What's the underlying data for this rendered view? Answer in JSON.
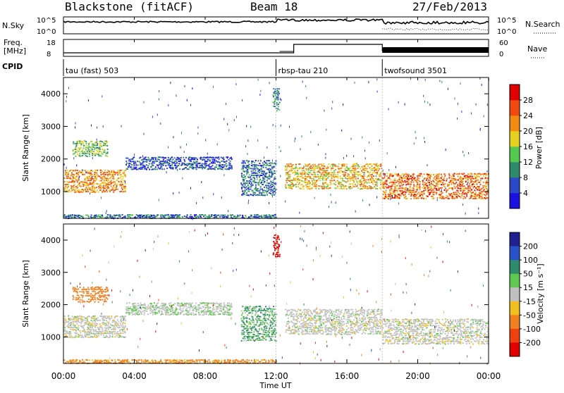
{
  "header": {
    "station": "Blackstone (fitACF)",
    "beam": "Beam 18",
    "date": "27/Feb/2013"
  },
  "aux_panels": {
    "nsky_label": "N.Sky",
    "nsearch_label": "N.Search",
    "nsky_ticks": [
      "10^5",
      "10^0"
    ],
    "nsearch_ticks": [
      "10^5",
      "10^0"
    ],
    "freq_label_line1": "Freq.",
    "freq_label_line2": "[MHz]",
    "freq_ticks": [
      "18",
      "8"
    ],
    "nave_label": "Nave",
    "nave_ticks": [
      "60",
      "0"
    ],
    "cpid_label": "CPID"
  },
  "cpid_segments": [
    {
      "name": "tau (fast) 503",
      "start_hour": 0
    },
    {
      "name": "rbsp-tau 210",
      "start_hour": 12
    },
    {
      "name": "twofsound 3501",
      "start_hour": 18
    }
  ],
  "time_axis": {
    "label": "Time UT",
    "ticks": [
      "00:00",
      "04:00",
      "08:00",
      "12:00",
      "16:00",
      "20:00",
      "00:00"
    ],
    "range_hours": [
      0,
      24
    ]
  },
  "power_panel": {
    "ylabel": "Slant Range [km]",
    "yticks": [
      "1000",
      "2000",
      "3000",
      "4000"
    ],
    "yrange_km": [
      180,
      4500
    ],
    "colorbar_label": "Power [dB]",
    "colorbar_ticks": [
      "4",
      "8",
      "12",
      "16",
      "20",
      "24",
      "28"
    ],
    "colorbar_range": [
      0,
      32
    ],
    "colorbar_colors": [
      "#1a10e0",
      "#2a48c8",
      "#2e8a6a",
      "#55c850",
      "#e8d020",
      "#f08a10",
      "#f04a10",
      "#e00000"
    ]
  },
  "velocity_panel": {
    "ylabel": "Slant Range [km]",
    "yticks": [
      "1000",
      "2000",
      "3000",
      "4000"
    ],
    "yrange_km": [
      180,
      4500
    ],
    "colorbar_label": "Velocity [m s⁻¹]",
    "colorbar_ticks": [
      "200",
      "100",
      "50",
      "15",
      "-15",
      "-50",
      "-100",
      "-200"
    ],
    "colorbar_colors": [
      "#202090",
      "#2850c8",
      "#2e8a6a",
      "#60c850",
      "#c0c0c0",
      "#f0c020",
      "#f08020",
      "#f04010",
      "#e00000"
    ]
  },
  "chart_data": [
    {
      "type": "heatmap",
      "title": "Blackstone (fitACF) Beam 18 27/Feb/2013 — Power",
      "xlabel": "Time UT",
      "ylabel": "Slant Range [km]",
      "xlim": [
        0,
        24
      ],
      "ylim": [
        180,
        4500
      ],
      "zlabel": "Power [dB]",
      "zlim": [
        0,
        32
      ],
      "regions": [
        {
          "t_start": 0.0,
          "t_end": 3.5,
          "r_low": 1000,
          "r_high": 1700,
          "power_db": 22
        },
        {
          "t_start": 0.5,
          "t_end": 2.5,
          "r_low": 2100,
          "r_high": 2600,
          "power_db": 14
        },
        {
          "t_start": 3.5,
          "t_end": 9.5,
          "r_low": 1700,
          "r_high": 2100,
          "power_db": 6
        },
        {
          "t_start": 10.0,
          "t_end": 12.0,
          "r_low": 900,
          "r_high": 2000,
          "power_db": 8
        },
        {
          "t_start": 11.8,
          "t_end": 12.2,
          "r_low": 3500,
          "r_high": 4200,
          "power_db": 10
        },
        {
          "t_start": 12.5,
          "t_end": 18.0,
          "r_low": 1100,
          "r_high": 1900,
          "power_db": 20
        },
        {
          "t_start": 18.0,
          "t_end": 24.0,
          "r_low": 800,
          "r_high": 1600,
          "power_db": 24
        },
        {
          "t_start": 0.0,
          "t_end": 12.0,
          "r_low": 200,
          "r_high": 330,
          "power_db": 8
        }
      ]
    },
    {
      "type": "heatmap",
      "title": "Blackstone (fitACF) Beam 18 27/Feb/2013 — Velocity",
      "xlabel": "Time UT",
      "ylabel": "Slant Range [km]",
      "xlim": [
        0,
        24
      ],
      "ylim": [
        180,
        4500
      ],
      "zlabel": "Velocity [m s-1]",
      "zlim": [
        -200,
        200
      ],
      "regions": [
        {
          "t_start": 0.0,
          "t_end": 3.5,
          "r_low": 1000,
          "r_high": 1700,
          "velocity": 0
        },
        {
          "t_start": 0.5,
          "t_end": 2.5,
          "r_low": 2100,
          "r_high": 2600,
          "velocity": -80
        },
        {
          "t_start": 3.5,
          "t_end": 9.5,
          "r_low": 1700,
          "r_high": 2100,
          "velocity": 10
        },
        {
          "t_start": 10.0,
          "t_end": 12.0,
          "r_low": 900,
          "r_high": 2000,
          "velocity": 30
        },
        {
          "t_start": 11.8,
          "t_end": 12.2,
          "r_low": 3500,
          "r_high": 4200,
          "velocity": -180
        },
        {
          "t_start": 12.5,
          "t_end": 18.0,
          "r_low": 1100,
          "r_high": 1900,
          "velocity": 0
        },
        {
          "t_start": 18.0,
          "t_end": 24.0,
          "r_low": 800,
          "r_high": 1600,
          "velocity": 0
        },
        {
          "t_start": 0.0,
          "t_end": 12.0,
          "r_low": 200,
          "r_high": 330,
          "velocity": -60
        }
      ]
    }
  ]
}
